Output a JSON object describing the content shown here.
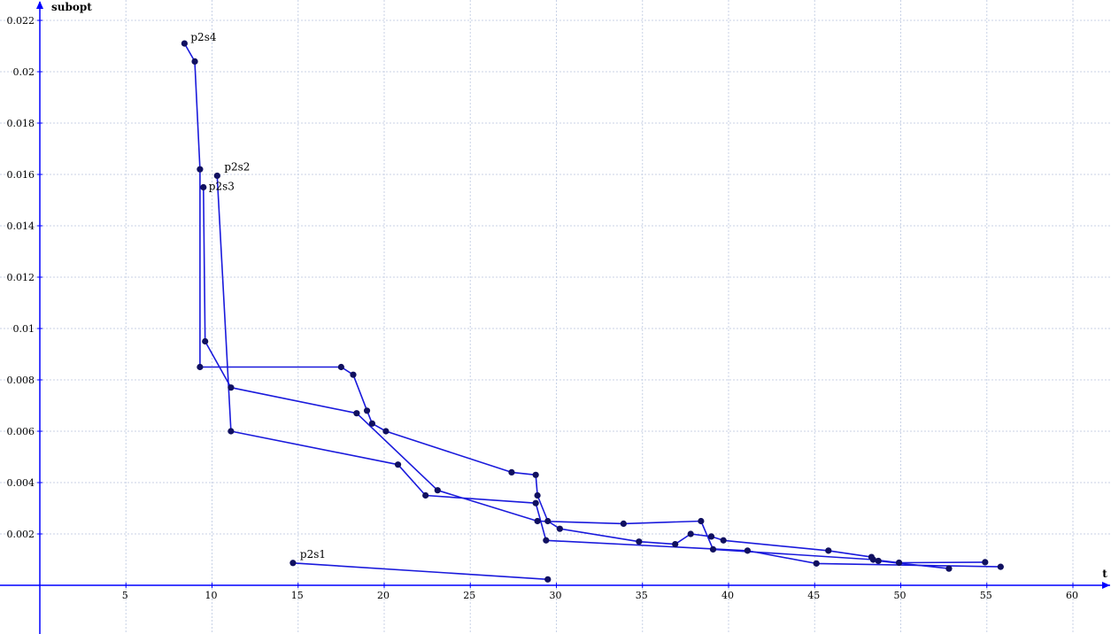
{
  "chart_data": {
    "type": "line",
    "title": "",
    "xlabel": "t",
    "ylabel": "subopt",
    "xlim": [
      -5,
      63
    ],
    "ylim": [
      -0.0019,
      0.0225
    ],
    "grid": true,
    "x_ticks": [
      5,
      10,
      15,
      20,
      25,
      30,
      35,
      40,
      45,
      50,
      55,
      60
    ],
    "x_tick_labels": [
      "5",
      "10",
      "15",
      "20",
      "25",
      "30",
      "35",
      "40",
      "45",
      "50",
      "55",
      "60"
    ],
    "y_ticks": [
      0.002,
      0.004,
      0.006,
      0.008,
      0.01,
      0.012,
      0.014,
      0.016,
      0.018,
      0.02,
      0.022
    ],
    "y_tick_labels": [
      "0.002",
      "0.004",
      "0.006",
      "0.008",
      "0.01",
      "0.012",
      "0.014",
      "0.016",
      "0.018",
      "0.02",
      "0.022"
    ],
    "colors": {
      "line": "#1a1adc",
      "marker": "#101060",
      "axis": "#0000ff",
      "grid": "#c8d2e6"
    },
    "series": [
      {
        "name": "p2s1",
        "points": [
          [
            14.7,
            0.00087
          ],
          [
            29.5,
            0.00023
          ]
        ]
      },
      {
        "name": "p2s2",
        "points": [
          [
            10.3,
            0.01595
          ],
          [
            11.1,
            0.006
          ],
          [
            20.8,
            0.0047
          ],
          [
            22.4,
            0.0035
          ],
          [
            28.8,
            0.0032
          ],
          [
            29.4,
            0.00175
          ],
          [
            41.1,
            0.00135
          ],
          [
            45.1,
            0.00085
          ],
          [
            55.8,
            0.00072
          ]
        ]
      },
      {
        "name": "p2s3",
        "points": [
          [
            9.5,
            0.0155
          ],
          [
            9.6,
            0.0095
          ],
          [
            11.1,
            0.0077
          ],
          [
            18.4,
            0.0067
          ],
          [
            23.1,
            0.0037
          ],
          [
            28.9,
            0.0025
          ],
          [
            33.9,
            0.0024
          ],
          [
            38.4,
            0.0025
          ],
          [
            39.1,
            0.0014
          ],
          [
            48.4,
            0.001
          ],
          [
            49.9,
            0.00088
          ],
          [
            54.9,
            0.0009
          ]
        ]
      },
      {
        "name": "p2s4",
        "points": [
          [
            8.4,
            0.0211
          ],
          [
            9.0,
            0.0204
          ],
          [
            9.3,
            0.0162
          ],
          [
            9.3,
            0.0085
          ],
          [
            17.5,
            0.0085
          ],
          [
            18.2,
            0.0082
          ],
          [
            19.0,
            0.0068
          ],
          [
            19.3,
            0.0063
          ],
          [
            20.1,
            0.006
          ],
          [
            27.4,
            0.0044
          ],
          [
            28.8,
            0.0043
          ],
          [
            28.9,
            0.0035
          ],
          [
            29.5,
            0.0025
          ],
          [
            30.2,
            0.0022
          ],
          [
            34.8,
            0.0017
          ],
          [
            36.9,
            0.0016
          ],
          [
            37.8,
            0.002
          ],
          [
            39.0,
            0.0019
          ],
          [
            39.7,
            0.00175
          ],
          [
            45.8,
            0.00135
          ],
          [
            48.3,
            0.0011
          ],
          [
            48.7,
            0.00095
          ],
          [
            52.8,
            0.00065
          ]
        ]
      }
    ]
  }
}
